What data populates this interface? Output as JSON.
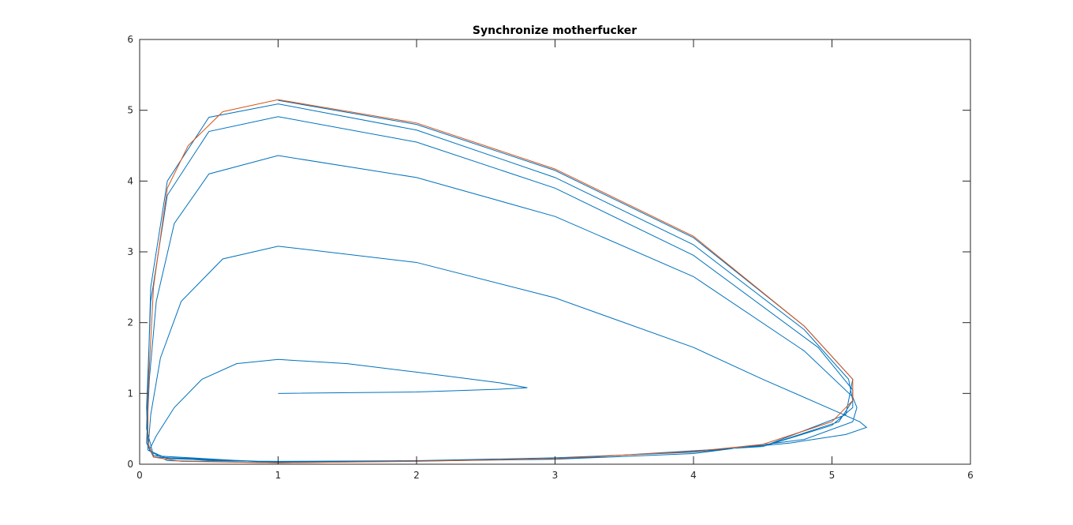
{
  "chart_data": {
    "type": "line",
    "title": "Synchronize motherfucker",
    "xlim": [
      0,
      6
    ],
    "ylim": [
      0,
      6
    ],
    "xticks": [
      0,
      1,
      2,
      3,
      4,
      5,
      6
    ],
    "yticks": [
      0,
      1,
      2,
      3,
      4,
      5,
      6
    ],
    "grid": false,
    "series": [
      {
        "color": "#0072bd",
        "x": [
          1,
          2,
          2.6,
          2.8,
          2.6,
          2,
          1.5,
          1,
          0.7,
          0.45,
          0.25,
          0.12,
          0.07,
          0.15,
          0.5,
          1,
          2,
          3,
          4,
          4.7,
          5.1,
          5.25,
          5.2,
          5.05,
          4.5,
          4,
          3,
          2,
          1,
          0.6,
          0.3,
          0.15,
          0.08,
          0.06,
          0.2,
          1,
          3,
          4,
          4.8,
          5.15,
          5.18,
          5.15,
          4.8,
          4,
          3,
          2,
          1,
          0.5,
          0.25,
          0.12,
          0.07,
          0.05,
          0.1,
          1,
          3,
          4.5,
          5,
          5.15,
          5.15,
          4.9,
          4,
          3,
          2,
          1,
          0.5,
          0.2,
          0.08,
          0.05,
          0.06,
          0.2,
          1,
          3,
          4.5,
          5.05,
          5.15,
          5.12,
          4.8,
          4,
          3,
          2,
          1,
          0.5,
          0.2,
          0.08,
          0.05,
          0.1,
          1,
          3,
          4.5,
          5.1,
          5.15,
          4.8,
          4,
          3,
          2,
          1
        ],
        "y": [
          1,
          1.02,
          1.06,
          1.08,
          1.15,
          1.3,
          1.42,
          1.48,
          1.42,
          1.2,
          0.8,
          0.4,
          0.2,
          0.1,
          0.05,
          0.04,
          0.05,
          0.09,
          0.17,
          0.3,
          0.42,
          0.52,
          0.6,
          0.73,
          1.2,
          1.65,
          2.35,
          2.85,
          3.08,
          2.9,
          2.3,
          1.5,
          0.7,
          0.2,
          0.08,
          0.03,
          0.07,
          0.15,
          0.35,
          0.6,
          0.8,
          0.95,
          1.6,
          2.65,
          3.5,
          4.05,
          4.36,
          4.1,
          3.4,
          2.3,
          1.2,
          0.3,
          0.1,
          0.03,
          0.07,
          0.25,
          0.55,
          0.8,
          1.05,
          1.65,
          2.95,
          3.9,
          4.55,
          4.91,
          4.7,
          3.8,
          2.3,
          0.8,
          0.2,
          0.05,
          0.02,
          0.07,
          0.25,
          0.6,
          0.9,
          1.2,
          1.9,
          3.1,
          4.05,
          4.72,
          5.09,
          4.9,
          4.0,
          2.5,
          0.5,
          0.12,
          0.02,
          0.07,
          0.25,
          0.7,
          1.2,
          1.95,
          3.2,
          4.15,
          4.8,
          5.14
        ]
      },
      {
        "color": "#d95319",
        "x": [
          1,
          2,
          3,
          4,
          4.8,
          5.15,
          5.15,
          5,
          4.5,
          4,
          3,
          2,
          1,
          0.3,
          0.1,
          0.06,
          0.06,
          0.1,
          0.2,
          0.35,
          0.6,
          1
        ],
        "y": [
          5.15,
          4.82,
          4.17,
          3.22,
          1.95,
          1.2,
          0.9,
          0.6,
          0.28,
          0.18,
          0.08,
          0.04,
          0.02,
          0.04,
          0.1,
          0.3,
          1,
          2.5,
          3.9,
          4.5,
          4.98,
          5.15
        ]
      }
    ]
  }
}
